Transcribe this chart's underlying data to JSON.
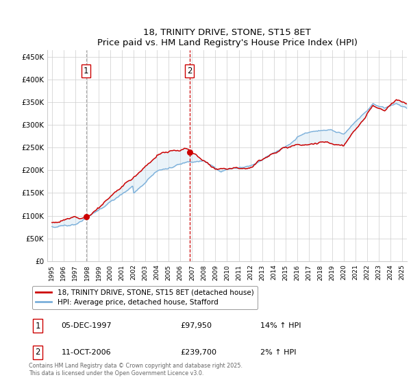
{
  "title": "18, TRINITY DRIVE, STONE, ST15 8ET",
  "subtitle": "Price paid vs. HM Land Registry's House Price Index (HPI)",
  "ylabel_ticks": [
    "£0",
    "£50K",
    "£100K",
    "£150K",
    "£200K",
    "£250K",
    "£300K",
    "£350K",
    "£400K",
    "£450K"
  ],
  "ytick_values": [
    0,
    50000,
    100000,
    150000,
    200000,
    250000,
    300000,
    350000,
    400000,
    450000
  ],
  "ylim": [
    0,
    465000
  ],
  "xlim_start": 1994.6,
  "xlim_end": 2025.4,
  "xtick_years": [
    1995,
    1996,
    1997,
    1998,
    1999,
    2000,
    2001,
    2002,
    2003,
    2004,
    2005,
    2006,
    2007,
    2008,
    2009,
    2010,
    2011,
    2012,
    2013,
    2014,
    2015,
    2016,
    2017,
    2018,
    2019,
    2020,
    2021,
    2022,
    2023,
    2024,
    2025
  ],
  "purchase1_year": 1997.92,
  "purchase1_price": 97950,
  "purchase1_label": "1",
  "purchase2_year": 2006.78,
  "purchase2_price": 239700,
  "purchase2_label": "2",
  "line1_color": "#cc0000",
  "line2_color": "#7aafda",
  "fill_color": "#c5dff0",
  "line1_label": "18, TRINITY DRIVE, STONE, ST15 8ET (detached house)",
  "line2_label": "HPI: Average price, detached house, Stafford",
  "marker_color": "#cc0000",
  "vline1_color": "#aaaaaa",
  "vline2_color": "#cc0000",
  "grid_color": "#cccccc",
  "background_color": "#ffffff",
  "label_box_color": "#cc0000",
  "footnote": "Contains HM Land Registry data © Crown copyright and database right 2025.\nThis data is licensed under the Open Government Licence v3.0.",
  "table_rows": [
    {
      "num": "1",
      "date": "05-DEC-1997",
      "price": "£97,950",
      "hpi": "14% ↑ HPI"
    },
    {
      "num": "2",
      "date": "11-OCT-2006",
      "price": "£239,700",
      "hpi": "2% ↑ HPI"
    }
  ]
}
